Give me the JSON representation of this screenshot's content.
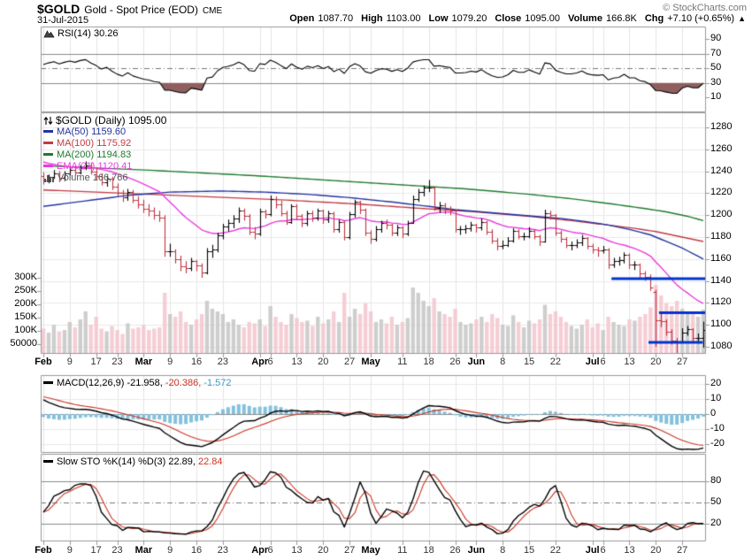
{
  "header": {
    "symbol": "$GOLD",
    "name": "Gold - Spot Price (EOD)",
    "exchange": "CME",
    "date": "31-Jul-2015",
    "copyright": "© StockCharts.com",
    "quote_fields": [
      {
        "label": "Open",
        "value": "1087.70"
      },
      {
        "label": "High",
        "value": "1103.00"
      },
      {
        "label": "Low",
        "value": "1079.20"
      },
      {
        "label": "Close",
        "value": "1095.00"
      },
      {
        "label": "Volume",
        "value": "166.8K"
      },
      {
        "label": "Chg",
        "value": "+7.10 (+0.65%)"
      }
    ],
    "change_arrow": "▲"
  },
  "panels": {
    "rsi": {
      "label": "RSI(14) 30.26",
      "yticks": [
        90,
        70,
        50,
        30,
        10
      ]
    },
    "main": {
      "title": "$GOLD (Daily) 1095.00",
      "overlays": [
        {
          "label": "MA(50) 1159.60",
          "color": "#2433A0"
        },
        {
          "label": "MA(100) 1175.92",
          "color": "#C23B44"
        },
        {
          "label": "MA(200) 1194.83",
          "color": "#1F7A2D"
        },
        {
          "label": "EMA(21) 1120.41",
          "color": "#E83BDD"
        }
      ],
      "volume_label": "Volume 166,766",
      "volume_label_color": "#555555"
    },
    "macd": {
      "parts": [
        {
          "text": "MACD(12,26,9) -21.958,",
          "color": "#000000"
        },
        {
          "text": " -20.386,",
          "color": "#CC3322"
        },
        {
          "text": " -1.572",
          "color": "#3E9ECB"
        }
      ],
      "yticks": [
        20,
        10,
        0,
        -10,
        -20
      ]
    },
    "sto": {
      "parts": [
        {
          "text": "Slow STO %K(14) %D(3) 22.89,",
          "color": "#000000"
        },
        {
          "text": " 22.84",
          "color": "#CC3322"
        }
      ],
      "yticks": [
        80,
        50,
        20
      ]
    }
  },
  "chart_data": {
    "type": "ohlc",
    "symbol": "$GOLD",
    "title": "Gold - Spot Price (EOD) CME, Daily, Feb-Jul 2015",
    "price_ticks": [
      1280,
      1260,
      1240,
      1220,
      1200,
      1180,
      1160,
      1140,
      1120,
      1100,
      1080
    ],
    "volume_ticks": [
      {
        "v": 300,
        "label": "300K"
      },
      {
        "v": 250,
        "label": "250K"
      },
      {
        "v": 200,
        "label": "200K"
      },
      {
        "v": 150,
        "label": "150K"
      },
      {
        "v": 100,
        "label": "100K"
      },
      {
        "v": 50,
        "label": "50000"
      }
    ],
    "xticks": [
      {
        "i": 0,
        "label": "Feb",
        "m": true
      },
      {
        "i": 5,
        "label": "9"
      },
      {
        "i": 10,
        "label": "17"
      },
      {
        "i": 14,
        "label": "23"
      },
      {
        "i": 19,
        "label": "Mar",
        "m": true
      },
      {
        "i": 24,
        "label": "9"
      },
      {
        "i": 29,
        "label": "16"
      },
      {
        "i": 34,
        "label": "23"
      },
      {
        "i": 41,
        "label": "Apr",
        "m": true
      },
      {
        "i": 43,
        "label": "6"
      },
      {
        "i": 48,
        "label": "13"
      },
      {
        "i": 53,
        "label": "20"
      },
      {
        "i": 58,
        "label": "27"
      },
      {
        "i": 62,
        "label": "May",
        "m": true
      },
      {
        "i": 68,
        "label": "11"
      },
      {
        "i": 73,
        "label": "18"
      },
      {
        "i": 78,
        "label": "26"
      },
      {
        "i": 82,
        "label": "Jun",
        "m": true
      },
      {
        "i": 87,
        "label": "8"
      },
      {
        "i": 92,
        "label": "15"
      },
      {
        "i": 97,
        "label": "22"
      },
      {
        "i": 104,
        "label": "Jul",
        "m": true
      },
      {
        "i": 106,
        "label": "6"
      },
      {
        "i": 111,
        "label": "13"
      },
      {
        "i": 116,
        "label": "20"
      },
      {
        "i": 121,
        "label": "27"
      }
    ],
    "ohlc": [
      [
        1236,
        1239,
        1228,
        1232
      ],
      [
        1232,
        1237,
        1229,
        1235
      ],
      [
        1235,
        1241,
        1233,
        1238
      ],
      [
        1238,
        1240,
        1230,
        1234
      ],
      [
        1234,
        1240,
        1231,
        1238
      ],
      [
        1238,
        1244,
        1236,
        1241
      ],
      [
        1241,
        1245,
        1236,
        1239
      ],
      [
        1239,
        1246,
        1237,
        1243
      ],
      [
        1243,
        1249,
        1241,
        1245
      ],
      [
        1245,
        1248,
        1237,
        1240
      ],
      [
        1240,
        1243,
        1232,
        1236
      ],
      [
        1236,
        1238,
        1227,
        1230
      ],
      [
        1230,
        1236,
        1226,
        1233
      ],
      [
        1233,
        1235,
        1223,
        1226
      ],
      [
        1226,
        1229,
        1217,
        1220
      ],
      [
        1220,
        1223,
        1212,
        1216
      ],
      [
        1216,
        1224,
        1213,
        1221
      ],
      [
        1221,
        1223,
        1211,
        1214
      ],
      [
        1214,
        1217,
        1206,
        1210
      ],
      [
        1210,
        1214,
        1202,
        1206
      ],
      [
        1206,
        1210,
        1199,
        1204
      ],
      [
        1204,
        1207,
        1196,
        1200
      ],
      [
        1200,
        1204,
        1194,
        1198
      ],
      [
        1198,
        1200,
        1162,
        1167
      ],
      [
        1167,
        1174,
        1162,
        1167
      ],
      [
        1167,
        1169,
        1156,
        1160
      ],
      [
        1160,
        1163,
        1149,
        1153
      ],
      [
        1153,
        1158,
        1147,
        1152
      ],
      [
        1152,
        1161,
        1149,
        1158
      ],
      [
        1158,
        1159,
        1149,
        1154
      ],
      [
        1154,
        1156,
        1143,
        1148
      ],
      [
        1148,
        1170,
        1146,
        1167
      ],
      [
        1167,
        1173,
        1161,
        1169
      ],
      [
        1169,
        1184,
        1166,
        1182
      ],
      [
        1182,
        1192,
        1178,
        1190
      ],
      [
        1190,
        1196,
        1185,
        1193
      ],
      [
        1193,
        1200,
        1188,
        1197
      ],
      [
        1197,
        1207,
        1193,
        1204
      ],
      [
        1204,
        1206,
        1195,
        1199
      ],
      [
        1199,
        1201,
        1182,
        1185
      ],
      [
        1185,
        1189,
        1178,
        1183
      ],
      [
        1183,
        1206,
        1181,
        1203
      ],
      [
        1203,
        1205,
        1197,
        1201
      ],
      [
        1201,
        1218,
        1199,
        1215
      ],
      [
        1215,
        1217,
        1206,
        1210
      ],
      [
        1210,
        1213,
        1199,
        1202
      ],
      [
        1202,
        1204,
        1191,
        1194
      ],
      [
        1194,
        1210,
        1192,
        1208
      ],
      [
        1208,
        1210,
        1196,
        1199
      ],
      [
        1199,
        1201,
        1189,
        1193
      ],
      [
        1193,
        1204,
        1190,
        1202
      ],
      [
        1202,
        1204,
        1194,
        1198
      ],
      [
        1198,
        1206,
        1195,
        1204
      ],
      [
        1204,
        1205,
        1192,
        1196
      ],
      [
        1196,
        1204,
        1193,
        1202
      ],
      [
        1202,
        1203,
        1184,
        1187
      ],
      [
        1187,
        1196,
        1184,
        1194
      ],
      [
        1194,
        1195,
        1177,
        1180
      ],
      [
        1180,
        1203,
        1178,
        1201
      ],
      [
        1201,
        1214,
        1198,
        1212
      ],
      [
        1212,
        1213,
        1201,
        1205
      ],
      [
        1205,
        1206,
        1181,
        1184
      ],
      [
        1184,
        1186,
        1174,
        1178
      ],
      [
        1178,
        1190,
        1176,
        1187
      ],
      [
        1187,
        1195,
        1184,
        1193
      ],
      [
        1193,
        1196,
        1187,
        1191
      ],
      [
        1191,
        1192,
        1181,
        1184
      ],
      [
        1184,
        1191,
        1181,
        1189
      ],
      [
        1189,
        1190,
        1179,
        1183
      ],
      [
        1183,
        1195,
        1181,
        1193
      ],
      [
        1193,
        1218,
        1192,
        1215
      ],
      [
        1215,
        1224,
        1212,
        1221
      ],
      [
        1221,
        1227,
        1217,
        1225
      ],
      [
        1225,
        1232,
        1221,
        1225
      ],
      [
        1225,
        1226,
        1204,
        1207
      ],
      [
        1207,
        1212,
        1202,
        1209
      ],
      [
        1209,
        1211,
        1201,
        1206
      ],
      [
        1206,
        1208,
        1200,
        1204
      ],
      [
        1204,
        1205,
        1184,
        1187
      ],
      [
        1187,
        1190,
        1182,
        1187
      ],
      [
        1187,
        1191,
        1183,
        1188
      ],
      [
        1188,
        1194,
        1185,
        1191
      ],
      [
        1191,
        1192,
        1184,
        1189
      ],
      [
        1189,
        1197,
        1186,
        1194
      ],
      [
        1194,
        1195,
        1182,
        1185
      ],
      [
        1185,
        1187,
        1174,
        1177
      ],
      [
        1177,
        1179,
        1168,
        1172
      ],
      [
        1172,
        1177,
        1169,
        1173
      ],
      [
        1173,
        1180,
        1171,
        1177
      ],
      [
        1177,
        1188,
        1175,
        1186
      ],
      [
        1186,
        1187,
        1178,
        1181
      ],
      [
        1181,
        1184,
        1177,
        1181
      ],
      [
        1181,
        1189,
        1179,
        1186
      ],
      [
        1186,
        1187,
        1178,
        1181
      ],
      [
        1181,
        1182,
        1172,
        1176
      ],
      [
        1176,
        1205,
        1175,
        1202
      ],
      [
        1202,
        1204,
        1196,
        1200
      ],
      [
        1200,
        1201,
        1181,
        1184
      ],
      [
        1184,
        1186,
        1175,
        1178
      ],
      [
        1178,
        1180,
        1170,
        1173
      ],
      [
        1173,
        1176,
        1168,
        1173
      ],
      [
        1173,
        1178,
        1170,
        1175
      ],
      [
        1175,
        1182,
        1172,
        1179
      ],
      [
        1179,
        1180,
        1169,
        1172
      ],
      [
        1172,
        1174,
        1165,
        1169
      ],
      [
        1169,
        1171,
        1162,
        1168
      ],
      [
        1168,
        1172,
        1165,
        1169
      ],
      [
        1169,
        1170,
        1151,
        1155
      ],
      [
        1155,
        1161,
        1152,
        1158
      ],
      [
        1158,
        1162,
        1154,
        1159
      ],
      [
        1159,
        1166,
        1156,
        1164
      ],
      [
        1164,
        1165,
        1151,
        1155
      ],
      [
        1155,
        1158,
        1150,
        1155
      ],
      [
        1155,
        1156,
        1143,
        1147
      ],
      [
        1147,
        1149,
        1140,
        1144
      ],
      [
        1144,
        1146,
        1131,
        1134
      ],
      [
        1130,
        1132,
        1080,
        1104
      ],
      [
        1104,
        1110,
        1098,
        1103
      ],
      [
        1103,
        1105,
        1090,
        1094
      ],
      [
        1094,
        1096,
        1082,
        1086
      ],
      [
        1086,
        1088,
        1072,
        1085
      ],
      [
        1085,
        1097,
        1083,
        1093
      ],
      [
        1093,
        1099,
        1090,
        1096
      ],
      [
        1096,
        1097,
        1084,
        1088
      ],
      [
        1088,
        1092,
        1083,
        1088
      ],
      [
        1087.7,
        1103,
        1079.2,
        1095
      ]
    ],
    "volume_k": [
      95,
      80,
      110,
      85,
      90,
      120,
      100,
      130,
      160,
      110,
      140,
      95,
      85,
      105,
      90,
      75,
      115,
      95,
      100,
      110,
      90,
      95,
      100,
      230,
      150,
      140,
      160,
      120,
      110,
      130,
      150,
      200,
      170,
      160,
      150,
      120,
      130,
      110,
      100,
      120,
      115,
      130,
      105,
      180,
      140,
      120,
      110,
      150,
      135,
      120,
      125,
      105,
      140,
      115,
      130,
      160,
      120,
      230,
      140,
      170,
      150,
      190,
      160,
      120,
      130,
      115,
      140,
      110,
      120,
      135,
      250,
      230,
      200,
      180,
      210,
      160,
      150,
      140,
      170,
      120,
      110,
      115,
      130,
      140,
      120,
      150,
      135,
      110,
      105,
      145,
      120,
      100,
      125,
      115,
      130,
      185,
      150,
      160,
      140,
      120,
      105,
      95,
      110,
      130,
      100,
      115,
      90,
      140,
      120,
      110,
      105,
      130,
      125,
      140,
      150,
      175,
      260,
      220,
      190,
      180,
      200,
      170,
      150,
      160,
      140,
      167
    ],
    "ma_anchors": {
      "ma50": [
        [
          0,
          1208
        ],
        [
          8,
          1213
        ],
        [
          16,
          1218
        ],
        [
          24,
          1221
        ],
        [
          34,
          1222
        ],
        [
          42,
          1221
        ],
        [
          50,
          1219
        ],
        [
          58,
          1216
        ],
        [
          66,
          1212
        ],
        [
          73,
          1208
        ],
        [
          78,
          1205
        ],
        [
          83,
          1203
        ],
        [
          88,
          1201
        ],
        [
          93,
          1199
        ],
        [
          98,
          1197
        ],
        [
          103,
          1194
        ],
        [
          107,
          1191
        ],
        [
          111,
          1187
        ],
        [
          115,
          1182
        ],
        [
          118,
          1176
        ],
        [
          121,
          1170
        ],
        [
          123,
          1165
        ],
        [
          125,
          1160
        ]
      ],
      "ma100": [
        [
          0,
          1223
        ],
        [
          15,
          1220
        ],
        [
          30,
          1217
        ],
        [
          45,
          1214
        ],
        [
          60,
          1210
        ],
        [
          72,
          1206
        ],
        [
          82,
          1203
        ],
        [
          92,
          1199
        ],
        [
          100,
          1195
        ],
        [
          107,
          1191
        ],
        [
          112,
          1188
        ],
        [
          116,
          1185
        ],
        [
          120,
          1181
        ],
        [
          125,
          1176
        ]
      ],
      "ma200": [
        [
          0,
          1245
        ],
        [
          20,
          1241
        ],
        [
          40,
          1236
        ],
        [
          60,
          1230
        ],
        [
          80,
          1224
        ],
        [
          92,
          1219
        ],
        [
          100,
          1215
        ],
        [
          108,
          1210
        ],
        [
          114,
          1206
        ],
        [
          118,
          1203
        ],
        [
          122,
          1199
        ],
        [
          125,
          1195
        ]
      ]
    },
    "annotations": {
      "hlines": [
        {
          "price": 1142,
          "i1": 107.6,
          "i2": 999
        },
        {
          "price": 1111,
          "i1": 116.6,
          "i2": 999
        },
        {
          "price": 1084,
          "i1": 114.6,
          "i2": 124.9
        }
      ]
    },
    "indicator_params": {
      "rsi": 14,
      "ema": 21,
      "macd": [
        12,
        26,
        9
      ],
      "sto": [
        14,
        3
      ]
    },
    "indicator_last_values": {
      "rsi": 30.26,
      "macd": -21.958,
      "macd_signal": -20.386,
      "macd_hist": -1.572,
      "sto_k": 22.89,
      "sto_d": 22.84,
      "ma50": 1159.6,
      "ma100": 1175.92,
      "ma200": 1194.83,
      "ema21": 1120.41,
      "volume": 166766
    },
    "colors": {
      "up": "#000000",
      "down": "#C0323E",
      "vol_up": "#C6C6C6",
      "vol_down": "#F3C6CE",
      "ma50": "#2433A0",
      "ma100": "#C23B44",
      "ma200": "#1F7A2D",
      "ema21": "#E83BDD",
      "macd_hist": "#85C1DC",
      "macd_line": "#000000",
      "macd_signal": "#CC3322",
      "sto_k": "#000000",
      "sto_d": "#CC3322",
      "rsi_line": "#000000",
      "rsi_fill": "#8F5F5F",
      "annotation": "#0033CC",
      "grid_v": "#E4E4E4",
      "grid_h": "#E9E9E9",
      "panel_border": "#999999",
      "ref_line": "#8A8A8A",
      "ref_mid": "#777777"
    }
  }
}
